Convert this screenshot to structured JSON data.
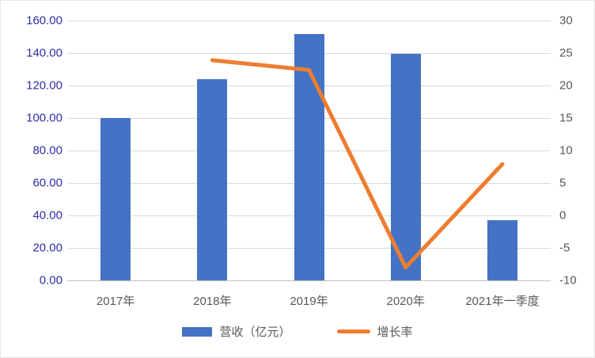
{
  "chart_data": {
    "type": "bar",
    "subtype": "bar-line-combo",
    "title": "",
    "categories": [
      "2017年",
      "2018年",
      "2019年",
      "2020年",
      "2021年一季度"
    ],
    "series": [
      {
        "name": "营收（亿元）",
        "type": "bar",
        "axis": "left",
        "values": [
          100,
          124,
          151.5,
          139.4,
          37
        ],
        "color": "#4472C4"
      },
      {
        "name": "增长率",
        "type": "line",
        "axis": "right",
        "values": [
          null,
          23.9,
          22.4,
          -8.0,
          7.9
        ],
        "color": "#ED7D31"
      }
    ],
    "left_axis": {
      "min": 0,
      "max": 160,
      "step": 20,
      "tick_labels": [
        "160.00",
        "140.00",
        "120.00",
        "100.00",
        "80.00",
        "60.00",
        "40.00",
        "20.00",
        "0.00"
      ],
      "label_color": "#2E2EA8"
    },
    "right_axis": {
      "min": -10,
      "max": 30,
      "step": 5,
      "tick_labels": [
        "30",
        "25",
        "20",
        "15",
        "10",
        "5",
        "0",
        "-5",
        "-10"
      ],
      "label_color": "#595959"
    },
    "x_axis": {
      "label_color": "#595959"
    },
    "grid": true,
    "gridline_color": "#D9D9D9",
    "axisline_color": "#BFBFBF",
    "legend_position": "bottom"
  }
}
